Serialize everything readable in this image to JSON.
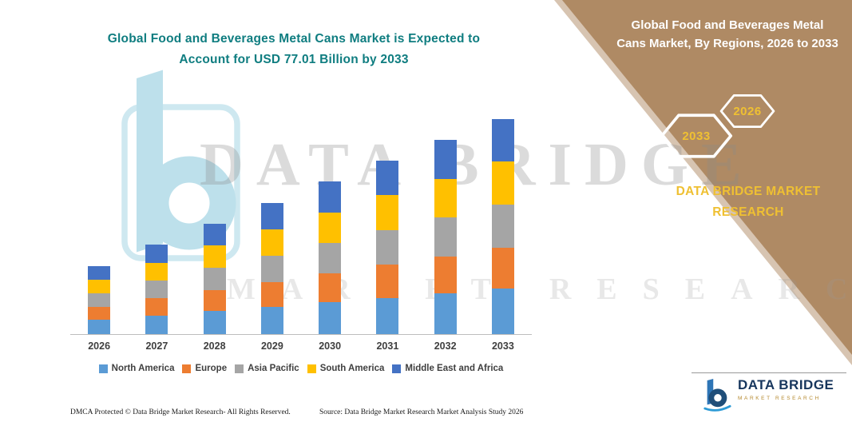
{
  "header": {
    "title_line1": "Global Food and Beverages Metal Cans Market is Expected to",
    "title_line2": "Account for USD 77.01 Billion by 2033",
    "title_color": "#0f7d80"
  },
  "side_panel": {
    "heading": "Global Food and Beverages Metal Cans Market, By Regions, 2026 to 2033",
    "hexagon_left": "2033",
    "hexagon_right": "2026",
    "brand_text": "DATA BRIDGE MARKET RESEARCH",
    "panel_color": "#af8a64",
    "gold_color": "#efc032"
  },
  "watermark": {
    "line1": "DATA BRIDGE",
    "line2": "MARKET RESEARCH"
  },
  "logo": {
    "name": "DATA BRIDGE",
    "tagline": "MARKET RESEARCH"
  },
  "footer": {
    "dmca": "DMCA Protected © Data Bridge Market Research-  All Rights Reserved.",
    "source": "Source: Data Bridge Market Research  Market Analysis Study 2026"
  },
  "chart_data": {
    "type": "bar",
    "stacked": true,
    "title": "Global Food and Beverages Metal Cans Market is Expected to Account for USD 77.01 Billion by 2033",
    "unit": "USD Billion",
    "categories": [
      "2026",
      "2027",
      "2028",
      "2029",
      "2030",
      "2031",
      "2032",
      "2033"
    ],
    "series": [
      {
        "name": "North America",
        "color": "#5b9bd5",
        "values": [
          5.1,
          6.7,
          8.3,
          9.8,
          11.4,
          13.0,
          14.6,
          16.2
        ]
      },
      {
        "name": "Europe",
        "color": "#ed7d31",
        "values": [
          4.6,
          6.1,
          7.5,
          8.9,
          10.4,
          11.8,
          13.2,
          14.6
        ]
      },
      {
        "name": "Asia Pacific",
        "color": "#a5a5a5",
        "values": [
          4.9,
          6.4,
          7.9,
          9.4,
          10.9,
          12.4,
          13.9,
          15.4
        ]
      },
      {
        "name": "South America",
        "color": "#ffc000",
        "values": [
          4.9,
          6.4,
          7.9,
          9.4,
          10.9,
          12.4,
          13.9,
          15.4
        ]
      },
      {
        "name": "Middle East and Africa",
        "color": "#4472c4",
        "values": [
          4.9,
          6.3,
          7.7,
          9.3,
          10.9,
          12.4,
          13.9,
          15.4
        ]
      }
    ],
    "totals": [
      24.4,
      31.9,
      39.3,
      46.8,
      54.5,
      62.0,
      69.5,
      77.01
    ],
    "ylim": [
      0,
      80
    ],
    "y_axis_visible": false,
    "gridlines": false,
    "legend_position": "bottom",
    "note": "No y-axis labels shown; segment values estimated from bar heights, scaled so the 2033 total equals USD 77.01 billion."
  }
}
